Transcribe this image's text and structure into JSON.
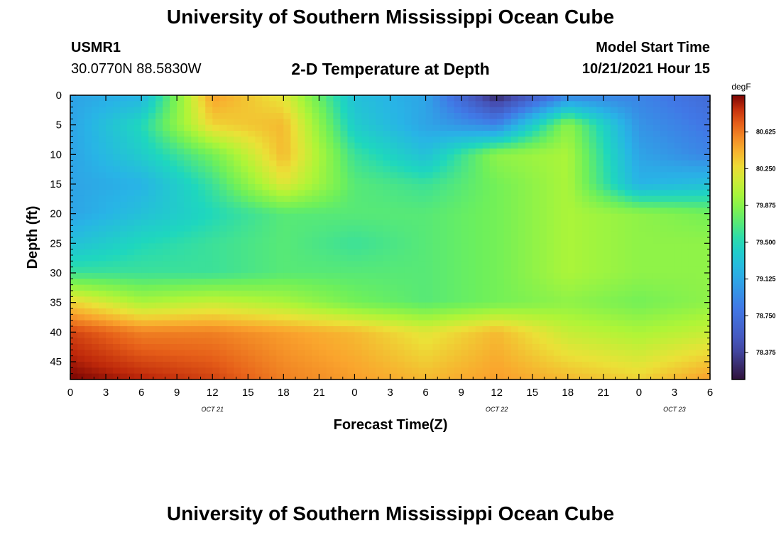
{
  "header": {
    "title": "University of Southern Mississippi Ocean Cube",
    "station_id": "USMR1",
    "coordinates": "30.0770N  88.5830W",
    "plot_title": "2-D Temperature at Depth",
    "model_start_label": "Model Start Time",
    "model_start_value": "10/21/2021 Hour 15",
    "footer_title": "University of Southern Mississippi Ocean Cube"
  },
  "chart_data": {
    "type": "heatmap",
    "xlabel": "Forecast Time(Z)",
    "ylabel": "Depth (ft)",
    "x_hours": [
      0,
      3,
      6,
      9,
      12,
      15,
      18,
      21,
      24,
      27,
      30,
      33,
      36,
      39,
      42,
      45,
      48,
      51,
      54
    ],
    "x_tick_labels": [
      "0",
      "3",
      "6",
      "9",
      "12",
      "15",
      "18",
      "21",
      "0",
      "3",
      "6",
      "9",
      "12",
      "15",
      "18",
      "21",
      "0",
      "3",
      "6"
    ],
    "date_labels": [
      {
        "hour": 12,
        "text": "OCT 21"
      },
      {
        "hour": 36,
        "text": "OCT 22"
      },
      {
        "hour": 51,
        "text": "OCT 23"
      }
    ],
    "xlim": [
      0,
      54
    ],
    "y_ticks": [
      0,
      5,
      10,
      15,
      20,
      25,
      30,
      35,
      40,
      45
    ],
    "ylim": [
      0,
      48
    ],
    "colorbar": {
      "unit": "degF",
      "ticks": [
        80.625,
        80.25,
        79.875,
        79.5,
        79.125,
        78.75,
        78.375
      ],
      "tick_labels": [
        "80.625",
        "80.250",
        "79.875",
        "79.500",
        "79.125",
        "78.750",
        "78.375"
      ],
      "range": [
        78.1,
        81.0
      ]
    },
    "grid": false,
    "temperature_grid": {
      "hours": [
        0,
        6,
        12,
        18,
        24,
        30,
        36,
        42,
        48,
        54
      ],
      "depths": [
        0,
        5,
        10,
        15,
        20,
        25,
        30,
        35,
        40,
        48
      ],
      "values": [
        [
          79.1,
          79.2,
          80.5,
          80.2,
          79.3,
          79.1,
          78.2,
          78.9,
          78.9,
          78.7
        ],
        [
          79.1,
          79.5,
          80.3,
          80.4,
          79.4,
          79.1,
          78.9,
          79.9,
          79.0,
          78.8
        ],
        [
          79.1,
          79.4,
          79.8,
          80.4,
          79.6,
          79.3,
          79.9,
          80.0,
          79.1,
          78.9
        ],
        [
          79.1,
          79.2,
          79.6,
          80.2,
          79.7,
          79.6,
          79.8,
          80.0,
          79.2,
          79.3
        ],
        [
          79.1,
          79.3,
          79.5,
          79.7,
          79.7,
          79.7,
          79.8,
          80.0,
          79.9,
          79.8
        ],
        [
          79.3,
          79.5,
          79.6,
          79.7,
          79.6,
          79.7,
          79.8,
          80.0,
          79.9,
          79.9
        ],
        [
          79.6,
          79.6,
          79.6,
          79.7,
          79.7,
          79.7,
          79.8,
          80.0,
          79.9,
          79.9
        ],
        [
          80.3,
          80.0,
          80.1,
          80.0,
          79.8,
          79.7,
          79.8,
          79.9,
          79.8,
          79.9
        ],
        [
          80.8,
          80.6,
          80.6,
          80.5,
          80.4,
          80.2,
          80.4,
          80.1,
          80.0,
          80.1
        ],
        [
          81.0,
          80.9,
          80.8,
          80.6,
          80.5,
          80.4,
          80.5,
          80.4,
          80.3,
          80.5
        ]
      ]
    }
  }
}
